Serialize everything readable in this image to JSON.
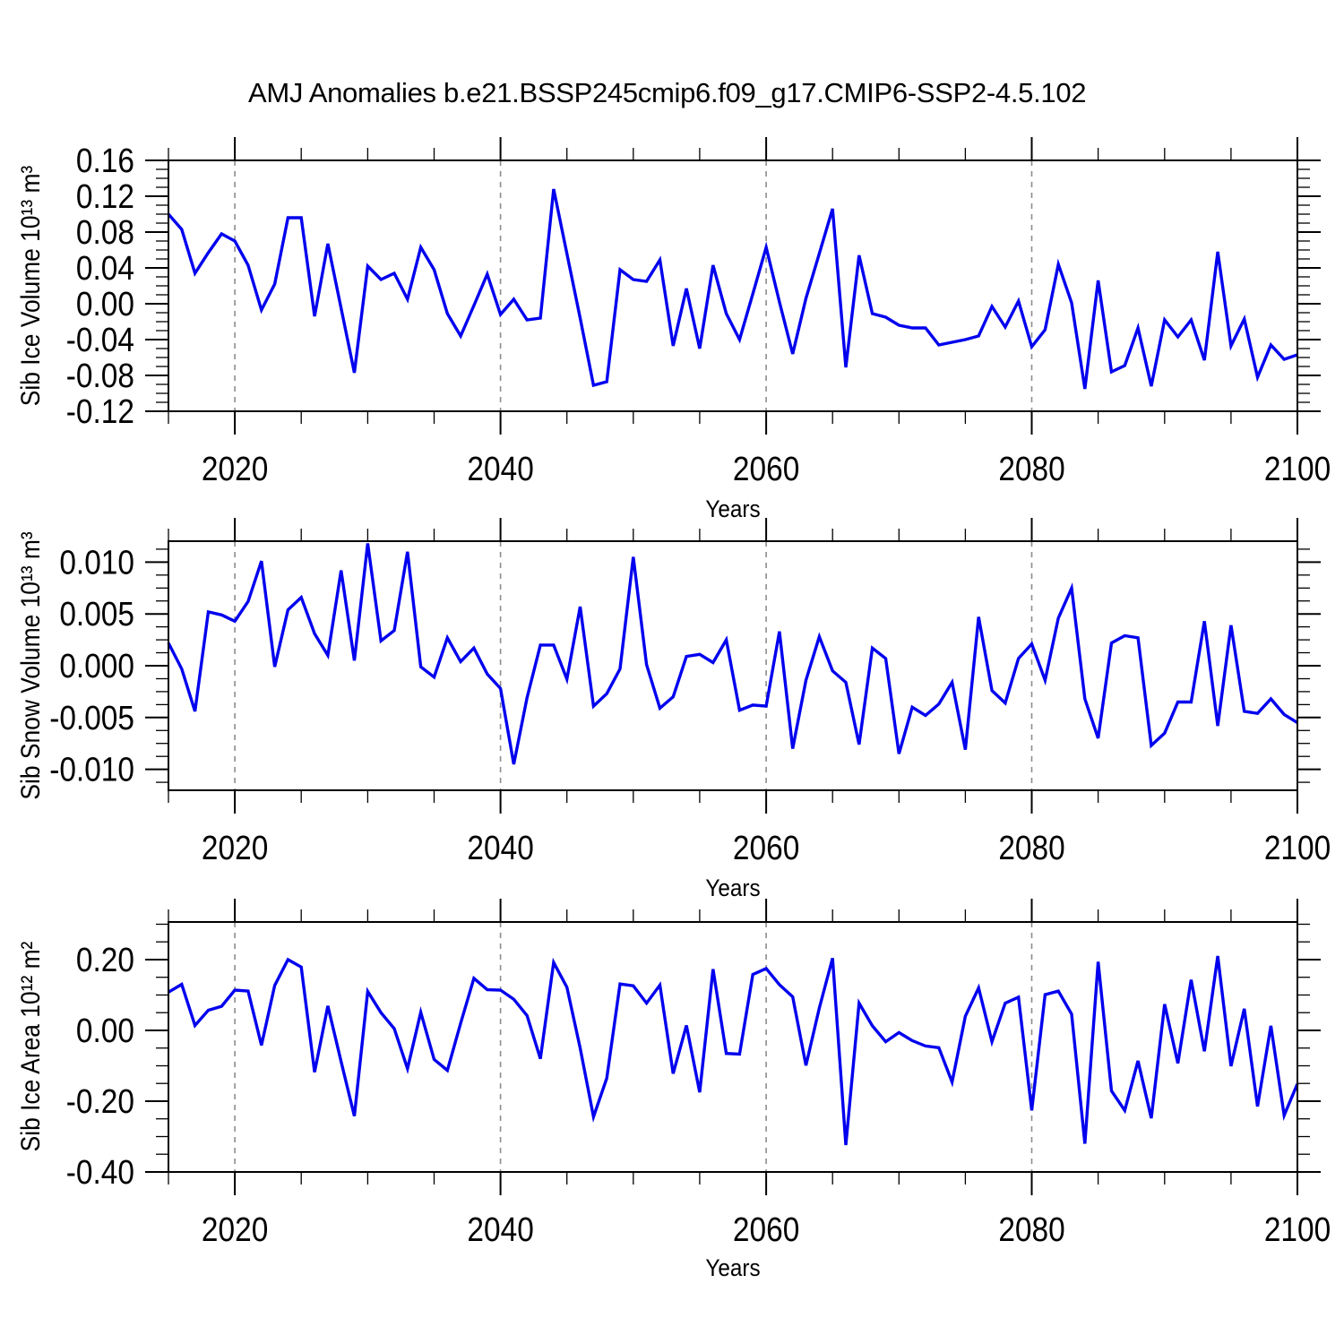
{
  "title": "AMJ Anomalies b.e21.BSSP245cmip6.f09_g17.CMIP6-SSP2-4.5.102",
  "chart_data": [
    {
      "type": "line",
      "name": "sib-ice-volume",
      "ylabel": "Sib Ice Volume 10¹³ m³",
      "xlabel": "Years",
      "x_start": 2015,
      "x_end": 2100,
      "x_step": 1,
      "xticks_major": [
        2020,
        2040,
        2060,
        2080,
        2100
      ],
      "xtick_labels": [
        "2020",
        "2040",
        "2060",
        "2080",
        "2100"
      ],
      "xtick_minor_step": 5,
      "grid_x": [
        2020,
        2040,
        2060,
        2080
      ],
      "ylim": [
        -0.12,
        0.16
      ],
      "ytick_labels": [
        "0.16",
        "0.12",
        "0.08",
        "0.04",
        "0.00",
        "-0.04",
        "-0.08",
        "-0.12"
      ],
      "ytick_minor_step": 0.01,
      "grid_on": true,
      "legend": "none",
      "line_color": "#0000ee",
      "values": [
        0.1,
        0.083,
        0.034,
        0.057,
        0.078,
        0.07,
        0.043,
        -0.007,
        0.022,
        0.096,
        0.096,
        -0.014,
        0.067,
        -0.005,
        -0.077,
        0.042,
        0.027,
        0.034,
        0.005,
        0.063,
        0.038,
        -0.011,
        -0.036,
        -0.002,
        0.033,
        -0.012,
        0.005,
        -0.018,
        -0.016,
        0.128,
        0.056,
        -0.016,
        -0.091,
        -0.087,
        0.038,
        0.027,
        0.025,
        0.049,
        -0.047,
        0.017,
        -0.05,
        0.043,
        -0.011,
        -0.04,
        0.011,
        0.063,
        0.002,
        -0.056,
        0.006,
        0.056,
        0.106,
        -0.071,
        0.054,
        -0.011,
        -0.015,
        -0.024,
        -0.027,
        -0.027,
        -0.046,
        -0.043,
        -0.04,
        -0.036,
        -0.003,
        -0.026,
        0.003,
        -0.048,
        -0.029,
        0.044,
        0.001,
        -0.095,
        0.026,
        -0.076,
        -0.069,
        -0.027,
        -0.092,
        -0.018,
        -0.037,
        -0.018,
        -0.063,
        0.058,
        -0.047,
        -0.017,
        -0.082,
        -0.046,
        -0.062,
        -0.057
      ]
    },
    {
      "type": "line",
      "name": "sib-snow-volume",
      "ylabel": "Sib Snow Volume 10¹³ m³",
      "xlabel": "Years",
      "x_start": 2015,
      "x_end": 2100,
      "x_step": 1,
      "xticks_major": [
        2020,
        2040,
        2060,
        2080,
        2100
      ],
      "xtick_labels": [
        "2020",
        "2040",
        "2060",
        "2080",
        "2100"
      ],
      "xtick_minor_step": 5,
      "grid_x": [
        2020,
        2040,
        2060,
        2080
      ],
      "ylim": [
        -0.01202,
        0.01202
      ],
      "ytick_labels": [
        "0.010",
        "0.005",
        "0.000",
        "-0.005",
        "-0.010"
      ],
      "ytick_minor_step": 0.00125,
      "grid_on": true,
      "legend": "none",
      "line_color": "#0000ee",
      "values": [
        0.0022,
        -0.0003,
        -0.0044,
        0.0052,
        0.0049,
        0.0043,
        0.0062,
        0.0101,
        -0.0001,
        0.0054,
        0.0066,
        0.0031,
        0.001,
        0.0092,
        0.0005,
        0.0118,
        0.0024,
        0.0034,
        0.011,
        -0.0001,
        -0.0011,
        0.0027,
        0.0004,
        0.0017,
        -0.0008,
        -0.0022,
        -0.0095,
        -0.0031,
        0.002,
        0.002,
        -0.0013,
        0.0057,
        -0.0039,
        -0.0027,
        -0.0003,
        0.0105,
        0.0001,
        -0.0041,
        -0.003,
        0.0009,
        0.0011,
        0.0003,
        0.0025,
        -0.0043,
        -0.0038,
        -0.0039,
        0.0033,
        -0.008,
        -0.0014,
        0.0028,
        -0.0005,
        -0.0016,
        -0.0076,
        0.0017,
        0.0007,
        -0.0085,
        -0.004,
        -0.0048,
        -0.0037,
        -0.0016,
        -0.0081,
        0.0047,
        -0.0024,
        -0.0036,
        0.0007,
        0.0021,
        -0.0014,
        0.0046,
        0.0075,
        -0.0032,
        -0.007,
        0.0022,
        0.0029,
        0.0027,
        -0.0077,
        -0.0065,
        -0.0035,
        -0.0035,
        0.0043,
        -0.0058,
        0.0039,
        -0.0044,
        -0.0046,
        -0.0032,
        -0.0047,
        -0.0055
      ]
    },
    {
      "type": "line",
      "name": "sib-ice-area",
      "ylabel": "Sib Ice Area 10¹² m²",
      "xlabel": "Years",
      "x_start": 2015,
      "x_end": 2100,
      "x_step": 1,
      "xticks_major": [
        2020,
        2040,
        2060,
        2080,
        2100
      ],
      "xtick_labels": [
        "2020",
        "2040",
        "2060",
        "2080",
        "2100"
      ],
      "xtick_minor_step": 5,
      "grid_x": [
        2020,
        2040,
        2060,
        2080
      ],
      "ylim": [
        -0.4,
        0.3063
      ],
      "ytick_labels": [
        "0.20",
        "0.00",
        "-0.20",
        "-0.40"
      ],
      "ytick_minor_step": 0.05,
      "grid_on": true,
      "legend": "none",
      "line_color": "#0000ee",
      "values": [
        0.108,
        0.13,
        0.014,
        0.057,
        0.068,
        0.114,
        0.111,
        -0.042,
        0.127,
        0.2,
        0.179,
        -0.118,
        0.069,
        -0.088,
        -0.242,
        0.11,
        0.05,
        0.005,
        -0.108,
        0.051,
        -0.082,
        -0.113,
        0.02,
        0.147,
        0.115,
        0.114,
        0.088,
        0.042,
        -0.08,
        0.192,
        0.122,
        -0.05,
        -0.244,
        -0.135,
        0.131,
        0.126,
        0.077,
        0.128,
        -0.122,
        0.014,
        -0.175,
        0.173,
        -0.065,
        -0.067,
        0.158,
        0.175,
        0.129,
        0.095,
        -0.099,
        0.063,
        0.204,
        -0.324,
        0.077,
        0.013,
        -0.032,
        -0.006,
        -0.029,
        -0.044,
        -0.049,
        -0.146,
        0.04,
        0.12,
        -0.032,
        0.077,
        0.094,
        -0.226,
        0.101,
        0.111,
        0.046,
        -0.32,
        0.194,
        -0.171,
        -0.226,
        -0.086,
        -0.248,
        0.074,
        -0.093,
        0.143,
        -0.059,
        0.21,
        -0.101,
        0.061,
        -0.215,
        0.013,
        -0.24,
        -0.151
      ]
    }
  ]
}
